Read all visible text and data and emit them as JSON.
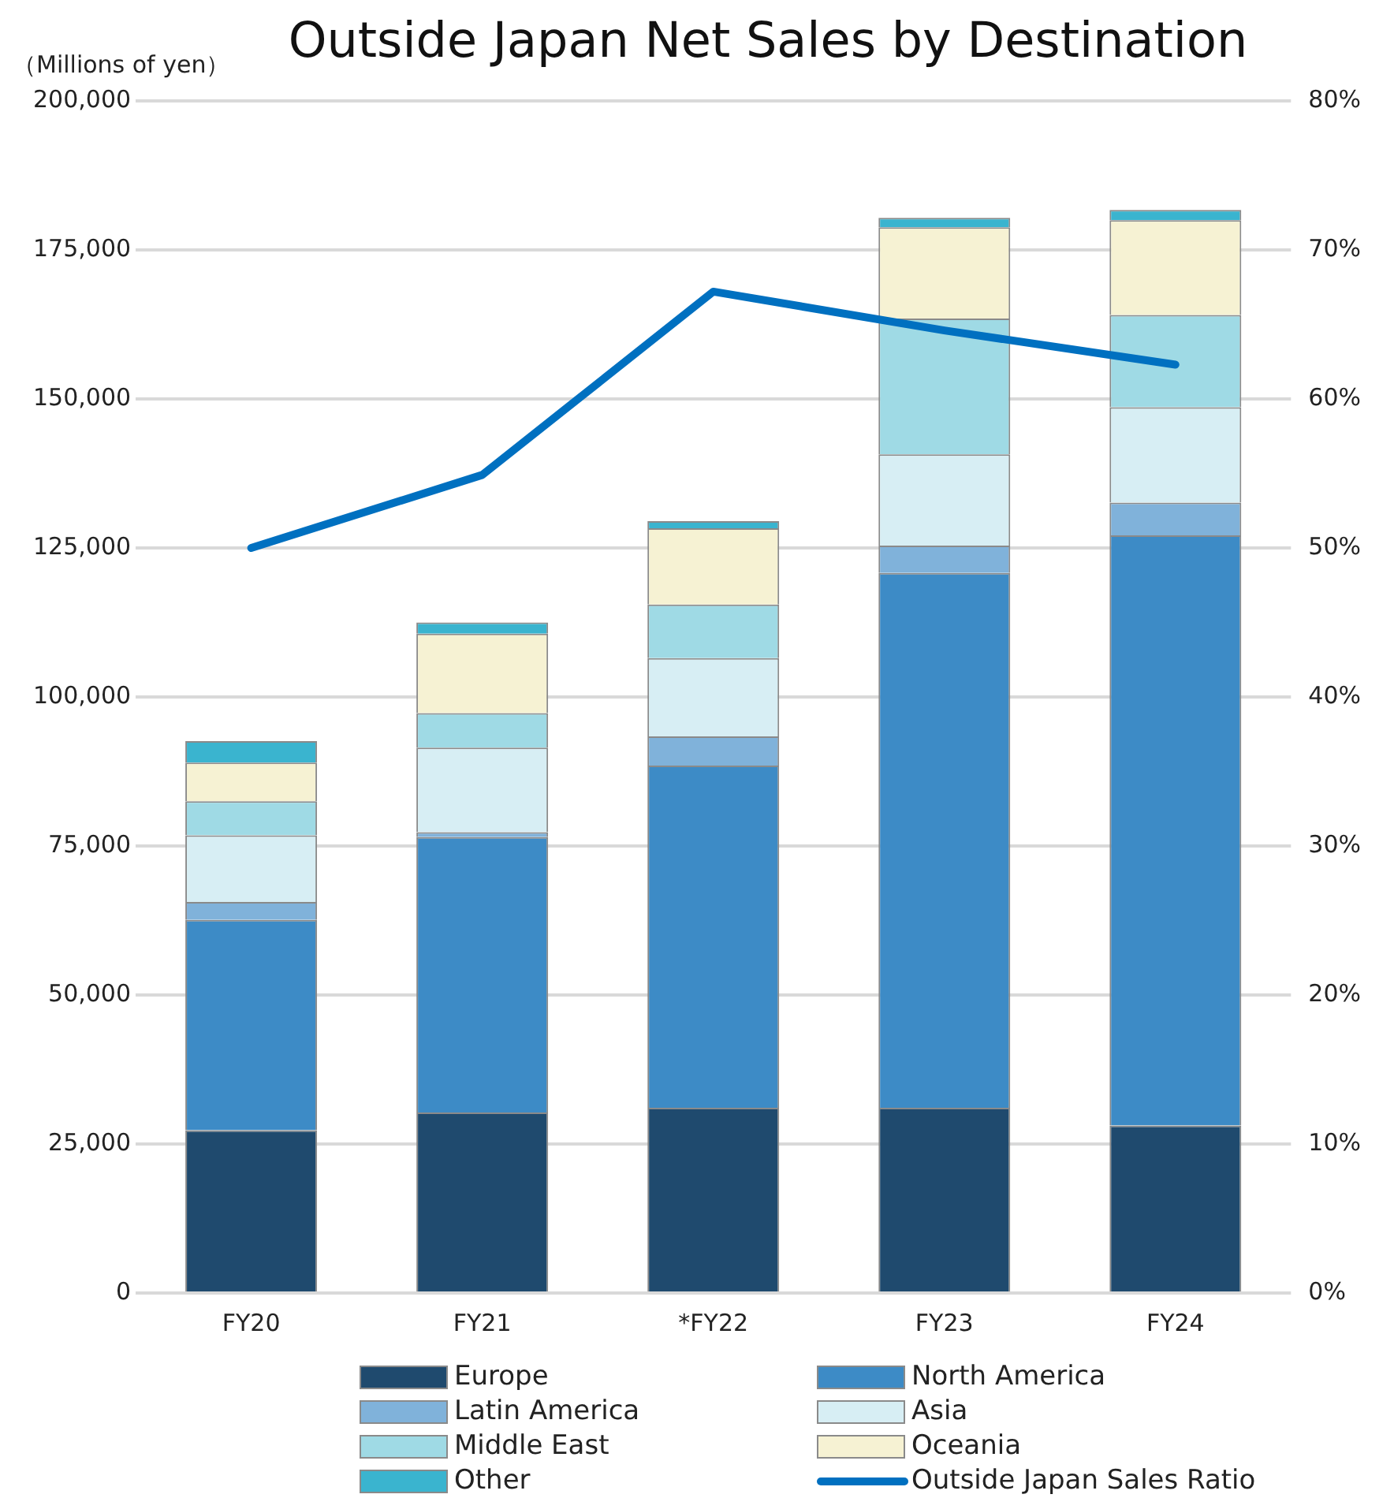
{
  "chart_data": {
    "type": "bar",
    "title": "Outside Japan Net Sales by Destination",
    "ylabel": "（Millions of yen）",
    "categories": [
      "FY20",
      "FY21",
      "*FY22",
      "FY23",
      "FY24"
    ],
    "stacked": true,
    "grid": "y",
    "legend": "bottom",
    "marker": "none",
    "line_style": "solid",
    "ylim": [
      0,
      200000
    ],
    "yticks": [
      {
        "value": 0,
        "label": "0"
      },
      {
        "value": 25000,
        "label": "25,000"
      },
      {
        "value": 50000,
        "label": "50,000"
      },
      {
        "value": 75000,
        "label": "75,000"
      },
      {
        "value": 100000,
        "label": "100,000"
      },
      {
        "value": 125000,
        "label": "125,000"
      },
      {
        "value": 150000,
        "label": "150,000"
      },
      {
        "value": 175000,
        "label": "175,000"
      },
      {
        "value": 200000,
        "label": "200,000"
      }
    ],
    "y2lim": [
      0,
      80
    ],
    "y2ticks": [
      {
        "value": 0,
        "label": "0%"
      },
      {
        "value": 10,
        "label": "10%"
      },
      {
        "value": 20,
        "label": "20%"
      },
      {
        "value": 30,
        "label": "30%"
      },
      {
        "value": 40,
        "label": "40%"
      },
      {
        "value": 50,
        "label": "50%"
      },
      {
        "value": 60,
        "label": "60%"
      },
      {
        "value": 70,
        "label": "70%"
      },
      {
        "value": 80,
        "label": "80%"
      }
    ],
    "series": [
      {
        "name": "Europe",
        "color": "#1f4a6e",
        "values": [
          27300,
          30300,
          31100,
          31100,
          28100
        ]
      },
      {
        "name": "North America",
        "color": "#3d8bc6",
        "values": [
          35300,
          46200,
          57400,
          89700,
          99000
        ]
      },
      {
        "name": "Latin America",
        "color": "#80b2da",
        "values": [
          3000,
          800,
          4900,
          4600,
          5500
        ]
      },
      {
        "name": "Asia",
        "color": "#d7eef4",
        "values": [
          11200,
          14200,
          13100,
          15300,
          16000
        ]
      },
      {
        "name": "Middle East",
        "color": "#9fdae5",
        "values": [
          5700,
          5800,
          9000,
          22800,
          15500
        ]
      },
      {
        "name": "Oceania",
        "color": "#f6f2d3",
        "values": [
          6500,
          13300,
          12800,
          15300,
          15900
        ]
      },
      {
        "name": "Other",
        "color": "#3ab4cf",
        "values": [
          3600,
          1900,
          1200,
          1600,
          1700
        ]
      },
      {
        "name": "Outside Japan Sales Ratio",
        "type": "line",
        "axis": "y2",
        "color": "#0070c0",
        "values": [
          50,
          54.9,
          67.2,
          64.6,
          62.3
        ]
      }
    ]
  }
}
